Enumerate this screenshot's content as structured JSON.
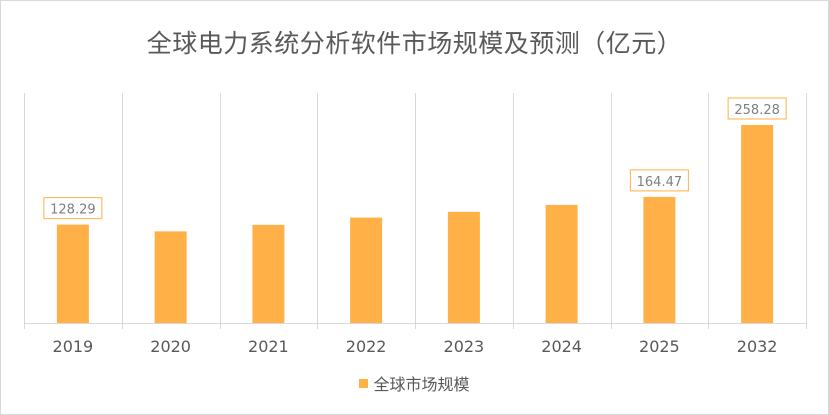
{
  "chart_data": {
    "type": "bar",
    "title": "全球电力系统分析软件市场规模及预测（亿元）",
    "xlabel": "",
    "ylabel": "",
    "categories": [
      "2019",
      "2020",
      "2021",
      "2022",
      "2023",
      "2024",
      "2025",
      "2032"
    ],
    "series": [
      {
        "name": "全球市场规模",
        "values": [
          128.29,
          119.5,
          128.0,
          137.5,
          145.0,
          154.0,
          164.47,
          258.28
        ],
        "color": "#ffb047"
      }
    ],
    "data_labels": [
      {
        "index": 0,
        "text": "128.29"
      },
      {
        "index": 6,
        "text": "164.47"
      },
      {
        "index": 7,
        "text": "258.28"
      }
    ],
    "ylim": [
      0,
      300
    ],
    "grid": "vertical",
    "legend_position": "bottom",
    "label_border_color": "#ffb047",
    "axis_color": "#d9d9d9"
  }
}
